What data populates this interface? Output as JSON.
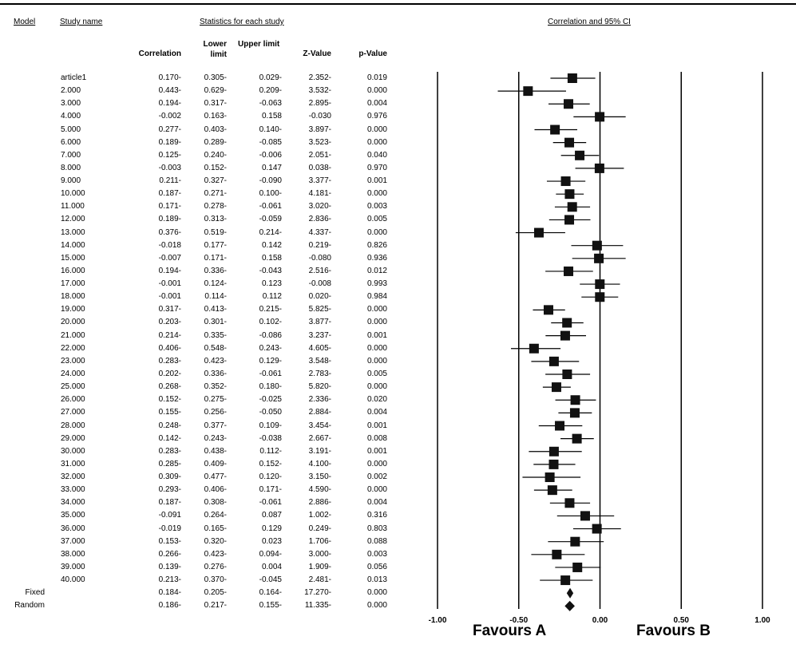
{
  "headers": {
    "model": "Model",
    "study_name": "Study name",
    "statistics": "Statistics for each study",
    "ci_title": "Correlation and 95% CI"
  },
  "columns": [
    "Correlation",
    "Lower limit",
    "Upper limit",
    "Z-Value",
    "p-Value"
  ],
  "favours": {
    "left": "Favours A",
    "right": "Favours B"
  },
  "chart_data": {
    "type": "table",
    "title": "Correlation and 95% CI",
    "xlim": [
      -1.0,
      1.0
    ],
    "x_ticks": [
      "-1.00",
      "-0.50",
      "0.00",
      "0.50",
      "1.00"
    ],
    "rows": [
      {
        "name": "article1",
        "corr": "0.170-",
        "lower": "0.305-",
        "upper": "0.029-",
        "z": "2.352-",
        "p": "0.019"
      },
      {
        "name": "2.000",
        "corr": "0.443-",
        "lower": "0.629-",
        "upper": "0.209-",
        "z": "3.532-",
        "p": "0.000"
      },
      {
        "name": "3.000",
        "corr": "0.194-",
        "lower": "0.317-",
        "upper": "-0.063",
        "z": "2.895-",
        "p": "0.004"
      },
      {
        "name": "4.000",
        "corr": "-0.002",
        "lower": "0.163-",
        "upper": "0.158",
        "z": "-0.030",
        "p": "0.976"
      },
      {
        "name": "5.000",
        "corr": "0.277-",
        "lower": "0.403-",
        "upper": "0.140-",
        "z": "3.897-",
        "p": "0.000"
      },
      {
        "name": "6.000",
        "corr": "0.189-",
        "lower": "0.289-",
        "upper": "-0.085",
        "z": "3.523-",
        "p": "0.000"
      },
      {
        "name": "7.000",
        "corr": "0.125-",
        "lower": "0.240-",
        "upper": "-0.006",
        "z": "2.051-",
        "p": "0.040"
      },
      {
        "name": "8.000",
        "corr": "-0.003",
        "lower": "0.152-",
        "upper": "0.147",
        "z": "0.038-",
        "p": "0.970"
      },
      {
        "name": "9.000",
        "corr": "0.211-",
        "lower": "0.327-",
        "upper": "-0.090",
        "z": "3.377-",
        "p": "0.001"
      },
      {
        "name": "10.000",
        "corr": "0.187-",
        "lower": "0.271-",
        "upper": "0.100-",
        "z": "4.181-",
        "p": "0.000"
      },
      {
        "name": "11.000",
        "corr": "0.171-",
        "lower": "0.278-",
        "upper": "-0.061",
        "z": "3.020-",
        "p": "0.003"
      },
      {
        "name": "12.000",
        "corr": "0.189-",
        "lower": "0.313-",
        "upper": "-0.059",
        "z": "2.836-",
        "p": "0.005"
      },
      {
        "name": "13.000",
        "corr": "0.376-",
        "lower": "0.519-",
        "upper": "0.214-",
        "z": "4.337-",
        "p": "0.000"
      },
      {
        "name": "14.000",
        "corr": "-0.018",
        "lower": "0.177-",
        "upper": "0.142",
        "z": "0.219-",
        "p": "0.826"
      },
      {
        "name": "15.000",
        "corr": "-0.007",
        "lower": "0.171-",
        "upper": "0.158",
        "z": "-0.080",
        "p": "0.936"
      },
      {
        "name": "16.000",
        "corr": "0.194-",
        "lower": "0.336-",
        "upper": "-0.043",
        "z": "2.516-",
        "p": "0.012"
      },
      {
        "name": "17.000",
        "corr": "-0.001",
        "lower": "0.124-",
        "upper": "0.123",
        "z": "-0.008",
        "p": "0.993"
      },
      {
        "name": "18.000",
        "corr": "-0.001",
        "lower": "0.114-",
        "upper": "0.112",
        "z": "0.020-",
        "p": "0.984"
      },
      {
        "name": "19.000",
        "corr": "0.317-",
        "lower": "0.413-",
        "upper": "0.215-",
        "z": "5.825-",
        "p": "0.000"
      },
      {
        "name": "20.000",
        "corr": "0.203-",
        "lower": "0.301-",
        "upper": "0.102-",
        "z": "3.877-",
        "p": "0.000"
      },
      {
        "name": "21.000",
        "corr": "0.214-",
        "lower": "0.335-",
        "upper": "-0.086",
        "z": "3.237-",
        "p": "0.001"
      },
      {
        "name": "22.000",
        "corr": "0.406-",
        "lower": "0.548-",
        "upper": "0.243-",
        "z": "4.605-",
        "p": "0.000"
      },
      {
        "name": "23.000",
        "corr": "0.283-",
        "lower": "0.423-",
        "upper": "0.129-",
        "z": "3.548-",
        "p": "0.000"
      },
      {
        "name": "24.000",
        "corr": "0.202-",
        "lower": "0.336-",
        "upper": "-0.061",
        "z": "2.783-",
        "p": "0.005"
      },
      {
        "name": "25.000",
        "corr": "0.268-",
        "lower": "0.352-",
        "upper": "0.180-",
        "z": "5.820-",
        "p": "0.000"
      },
      {
        "name": "26.000",
        "corr": "0.152-",
        "lower": "0.275-",
        "upper": "-0.025",
        "z": "2.336-",
        "p": "0.020"
      },
      {
        "name": "27.000",
        "corr": "0.155-",
        "lower": "0.256-",
        "upper": "-0.050",
        "z": "2.884-",
        "p": "0.004"
      },
      {
        "name": "28.000",
        "corr": "0.248-",
        "lower": "0.377-",
        "upper": "0.109-",
        "z": "3.454-",
        "p": "0.001"
      },
      {
        "name": "29.000",
        "corr": "0.142-",
        "lower": "0.243-",
        "upper": "-0.038",
        "z": "2.667-",
        "p": "0.008"
      },
      {
        "name": "30.000",
        "corr": "0.283-",
        "lower": "0.438-",
        "upper": "0.112-",
        "z": "3.191-",
        "p": "0.001"
      },
      {
        "name": "31.000",
        "corr": "0.285-",
        "lower": "0.409-",
        "upper": "0.152-",
        "z": "4.100-",
        "p": "0.000"
      },
      {
        "name": "32.000",
        "corr": "0.309-",
        "lower": "0.477-",
        "upper": "0.120-",
        "z": "3.150-",
        "p": "0.002"
      },
      {
        "name": "33.000",
        "corr": "0.293-",
        "lower": "0.406-",
        "upper": "0.171-",
        "z": "4.590-",
        "p": "0.000"
      },
      {
        "name": "34.000",
        "corr": "0.187-",
        "lower": "0.308-",
        "upper": "-0.061",
        "z": "2.886-",
        "p": "0.004"
      },
      {
        "name": "35.000",
        "corr": "-0.091",
        "lower": "0.264-",
        "upper": "0.087",
        "z": "1.002-",
        "p": "0.316"
      },
      {
        "name": "36.000",
        "corr": "-0.019",
        "lower": "0.165-",
        "upper": "0.129",
        "z": "0.249-",
        "p": "0.803"
      },
      {
        "name": "37.000",
        "corr": "0.153-",
        "lower": "0.320-",
        "upper": "0.023",
        "z": "1.706-",
        "p": "0.088"
      },
      {
        "name": "38.000",
        "corr": "0.266-",
        "lower": "0.423-",
        "upper": "0.094-",
        "z": "3.000-",
        "p": "0.003"
      },
      {
        "name": "39.000",
        "corr": "0.139-",
        "lower": "0.276-",
        "upper": "0.004",
        "z": "1.909-",
        "p": "0.056"
      },
      {
        "name": "40.000",
        "corr": "0.213-",
        "lower": "0.370-",
        "upper": "-0.045",
        "z": "2.481-",
        "p": "0.013"
      }
    ],
    "summary": [
      {
        "model": "Fixed",
        "corr": "0.184-",
        "lower": "0.205-",
        "upper": "0.164-",
        "z": "17.270-",
        "p": "0.000"
      },
      {
        "model": "Random",
        "corr": "0.186-",
        "lower": "0.217-",
        "upper": "0.155-",
        "z": "11.335-",
        "p": "0.000"
      }
    ],
    "plot_points": [
      {
        "est": -0.17,
        "lo": -0.305,
        "hi": -0.029
      },
      {
        "est": -0.443,
        "lo": -0.629,
        "hi": -0.209
      },
      {
        "est": -0.194,
        "lo": -0.317,
        "hi": -0.063
      },
      {
        "est": -0.002,
        "lo": -0.163,
        "hi": 0.158
      },
      {
        "est": -0.277,
        "lo": -0.403,
        "hi": -0.14
      },
      {
        "est": -0.189,
        "lo": -0.289,
        "hi": -0.085
      },
      {
        "est": -0.125,
        "lo": -0.24,
        "hi": -0.006
      },
      {
        "est": -0.003,
        "lo": -0.152,
        "hi": 0.147
      },
      {
        "est": -0.211,
        "lo": -0.327,
        "hi": -0.09
      },
      {
        "est": -0.187,
        "lo": -0.271,
        "hi": -0.1
      },
      {
        "est": -0.171,
        "lo": -0.278,
        "hi": -0.061
      },
      {
        "est": -0.189,
        "lo": -0.313,
        "hi": -0.059
      },
      {
        "est": -0.376,
        "lo": -0.519,
        "hi": -0.214
      },
      {
        "est": -0.018,
        "lo": -0.177,
        "hi": 0.142
      },
      {
        "est": -0.007,
        "lo": -0.171,
        "hi": 0.158
      },
      {
        "est": -0.194,
        "lo": -0.336,
        "hi": -0.043
      },
      {
        "est": -0.001,
        "lo": -0.124,
        "hi": 0.123
      },
      {
        "est": -0.001,
        "lo": -0.114,
        "hi": 0.112
      },
      {
        "est": -0.317,
        "lo": -0.413,
        "hi": -0.215
      },
      {
        "est": -0.203,
        "lo": -0.301,
        "hi": -0.102
      },
      {
        "est": -0.214,
        "lo": -0.335,
        "hi": -0.086
      },
      {
        "est": -0.406,
        "lo": -0.548,
        "hi": -0.243
      },
      {
        "est": -0.283,
        "lo": -0.423,
        "hi": -0.129
      },
      {
        "est": -0.202,
        "lo": -0.336,
        "hi": -0.061
      },
      {
        "est": -0.268,
        "lo": -0.352,
        "hi": -0.18
      },
      {
        "est": -0.152,
        "lo": -0.275,
        "hi": -0.025
      },
      {
        "est": -0.155,
        "lo": -0.256,
        "hi": -0.05
      },
      {
        "est": -0.248,
        "lo": -0.377,
        "hi": -0.109
      },
      {
        "est": -0.142,
        "lo": -0.243,
        "hi": -0.038
      },
      {
        "est": -0.283,
        "lo": -0.438,
        "hi": -0.112
      },
      {
        "est": -0.285,
        "lo": -0.409,
        "hi": -0.152
      },
      {
        "est": -0.309,
        "lo": -0.477,
        "hi": -0.12
      },
      {
        "est": -0.293,
        "lo": -0.406,
        "hi": -0.171
      },
      {
        "est": -0.187,
        "lo": -0.308,
        "hi": -0.061
      },
      {
        "est": -0.091,
        "lo": -0.264,
        "hi": 0.087
      },
      {
        "est": -0.019,
        "lo": -0.165,
        "hi": 0.129
      },
      {
        "est": -0.153,
        "lo": -0.32,
        "hi": 0.023
      },
      {
        "est": -0.266,
        "lo": -0.423,
        "hi": -0.094
      },
      {
        "est": -0.139,
        "lo": -0.276,
        "hi": 0.004
      },
      {
        "est": -0.213,
        "lo": -0.37,
        "hi": -0.045
      }
    ],
    "plot_summary": [
      {
        "est": -0.184,
        "lo": -0.205,
        "hi": -0.164
      },
      {
        "est": -0.186,
        "lo": -0.217,
        "hi": -0.155
      }
    ]
  }
}
